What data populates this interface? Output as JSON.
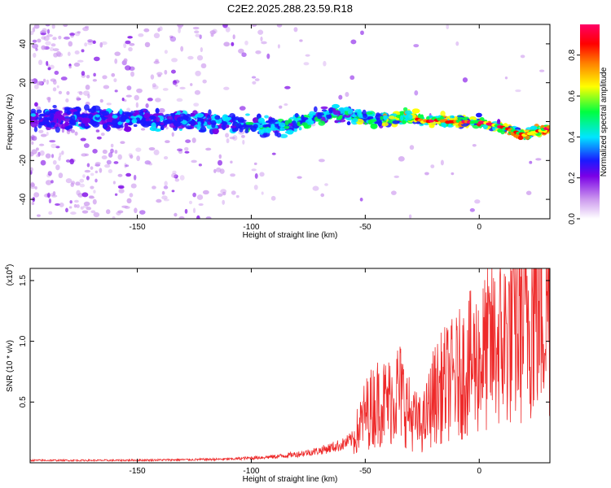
{
  "figure": {
    "title": "C2E2.2025.288.23.59.R18"
  },
  "chart_data": [
    {
      "type": "heatmap",
      "xlabel": "Height of straight line (km)",
      "ylabel": "Frequency (Hz)",
      "xlim": [
        -197,
        31
      ],
      "ylim": [
        -50,
        50
      ],
      "x_ticks": [
        -150,
        -100,
        -50,
        0
      ],
      "y_ticks": [
        -40,
        -20,
        0,
        20,
        40
      ],
      "colorbar": {
        "label": "Normalized spectral amplitude",
        "range": [
          0,
          0.95
        ],
        "ticks": [
          0.0,
          0.2,
          0.4,
          0.6,
          0.8
        ],
        "colors": [
          "#ffffff",
          "#cc99ee",
          "#7a00e6",
          "#1a1aff",
          "#00e5ff",
          "#00ff40",
          "#ffff00",
          "#ff8000",
          "#ff0000",
          "#ff0066"
        ]
      },
      "ridge": {
        "x": [
          -197,
          -150,
          -110,
          -85,
          -78,
          -70,
          -60,
          -50,
          -40,
          -30,
          -25,
          -20,
          -10,
          0,
          10,
          20,
          31
        ],
        "frequency": [
          2,
          1,
          0,
          -3,
          0,
          3,
          4,
          2,
          1,
          3,
          0,
          1,
          0,
          0,
          -3,
          -7,
          -3
        ]
      }
    },
    {
      "type": "line",
      "xlabel": "Height of straight line (km)",
      "ylabel": "SNR (10 * v/v)",
      "y_multiplier": "(x10",
      "y_multiplier_exp": "4",
      "y_multiplier_close": ")",
      "xlim": [
        -197,
        31
      ],
      "ylim": [
        0,
        1.6
      ],
      "x_ticks": [
        -150,
        -100,
        -50,
        0
      ],
      "y_ticks": [
        0.5,
        1.0,
        1.5
      ],
      "color": "#ee2a2a",
      "series": [
        {
          "x": [
            -197,
            -160,
            -130,
            -110,
            -100,
            -90,
            -80,
            -70,
            -60,
            -55,
            -50,
            -45,
            -40,
            -35,
            -30,
            -25,
            -20,
            -15,
            -10,
            -5,
            0,
            5,
            10,
            15,
            20,
            25,
            31
          ],
          "values": [
            0.02,
            0.02,
            0.025,
            0.03,
            0.04,
            0.05,
            0.07,
            0.1,
            0.15,
            0.2,
            0.4,
            0.5,
            0.5,
            0.6,
            0.38,
            0.3,
            0.55,
            0.65,
            0.7,
            0.8,
            0.85,
            0.95,
            1.0,
            1.1,
            1.2,
            1.3,
            1.35
          ]
        }
      ]
    }
  ]
}
